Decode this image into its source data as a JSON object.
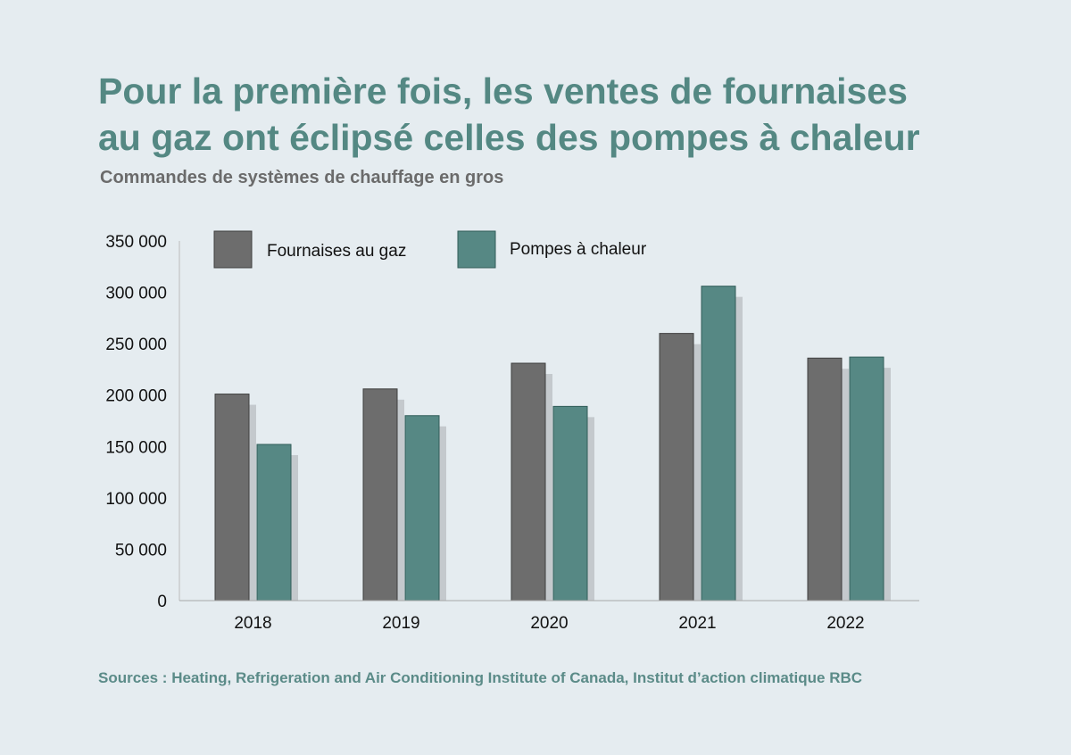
{
  "title": "Pour la première fois, les ventes de fournaises\nau gaz ont éclipsé celles des pompes à chaleur",
  "subtitle": "Commandes de systèmes de chauffage en gros",
  "source": "Sources : Heating, Refrigeration and Air Conditioning Institute of Canada, Institut d’action climatique RBC",
  "colors": {
    "background": "#e5ecf0",
    "title": "#548883",
    "gas_furnaces": "#6d6d6d",
    "heat_pumps": "#568884",
    "shadow": "#c4c9cd",
    "axis": "#bcbcbc",
    "source": "#5b8b88"
  },
  "chart_data": {
    "type": "bar",
    "categories": [
      "2018",
      "2019",
      "2020",
      "2021",
      "2022"
    ],
    "series": [
      {
        "name": "Fournaises au gaz",
        "values": [
          201000,
          206000,
          231000,
          260000,
          236000
        ],
        "color": "#6d6d6d"
      },
      {
        "name": "Pompes à chaleur",
        "values": [
          152000,
          180000,
          189000,
          306000,
          237000
        ],
        "color": "#568884"
      }
    ],
    "title": "Pour la première fois, les ventes de fournaises au gaz ont éclipsé celles des pompes à chaleur",
    "subtitle": "Commandes de systèmes de chauffage en gros",
    "xlabel": "",
    "ylabel": "",
    "ylim": [
      0,
      350000
    ],
    "yticks": [
      {
        "value": 350000,
        "label": "350 000"
      },
      {
        "value": 300000,
        "label": "300 000"
      },
      {
        "value": 250000,
        "label": "250 000"
      },
      {
        "value": 200000,
        "label": "200 000"
      },
      {
        "value": 150000,
        "label": "150 000"
      },
      {
        "value": 100000,
        "label": "100 000"
      },
      {
        "value": 50000,
        "label": "50 000"
      },
      {
        "value": 0,
        "label": "0"
      }
    ],
    "grid": false,
    "legend_position": "top-left"
  }
}
